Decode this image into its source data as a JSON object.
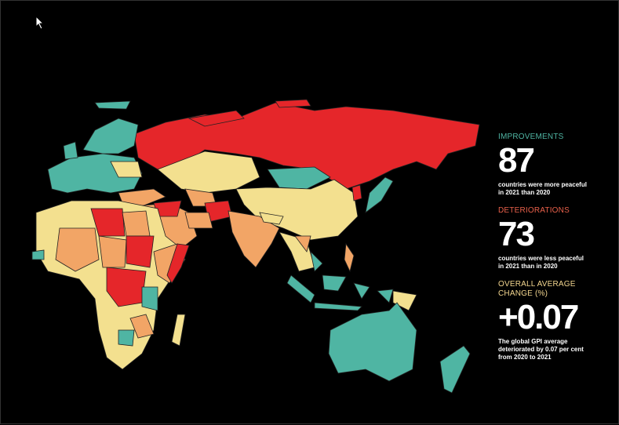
{
  "colors": {
    "improvement": "#4fb5a3",
    "deterioration": "#e8604a",
    "neutral": "#f3e08f",
    "orange": "#f2a566",
    "red": "#e5262a",
    "background": "#000000"
  },
  "stats": [
    {
      "label": "IMPROVEMENTS",
      "value": "87",
      "description": "countries were more peaceful in 2021 than 2020",
      "color": "#4fb5a3"
    },
    {
      "label": "DETERIORATIONS",
      "value": "73",
      "description": "countries were less peaceful in 2021 than in 2020",
      "color": "#e8604a"
    },
    {
      "label": "OVERALL AVERAGE CHANGE (%)",
      "value": "+0.07",
      "description": "The global GPI average deteriorated by 0.07 per cent from 2020 to 2021",
      "color": "#f3d68f"
    }
  ]
}
